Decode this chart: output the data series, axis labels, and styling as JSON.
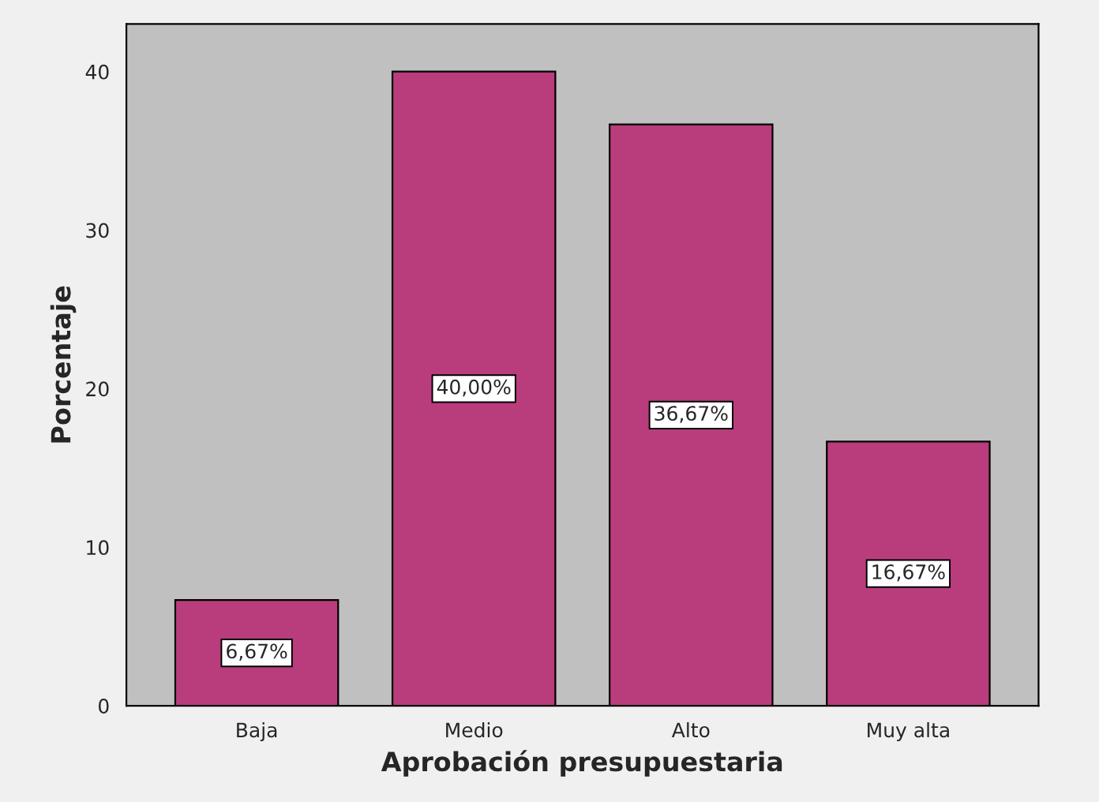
{
  "chart_data": {
    "type": "bar",
    "xlabel": "Aprobación presupuestaria",
    "ylabel": "Porcentaje",
    "categories": [
      "Baja",
      "Medio",
      "Alto",
      "Muy alta"
    ],
    "values": [
      6.67,
      40.0,
      36.67,
      16.67
    ],
    "value_labels": [
      "6,67%",
      "40,00%",
      "36,67%",
      "16,67%"
    ],
    "color": "#b93d7d",
    "ylim": [
      0,
      43
    ],
    "yticks": [
      0,
      10,
      20,
      30,
      40
    ],
    "grid": false
  }
}
